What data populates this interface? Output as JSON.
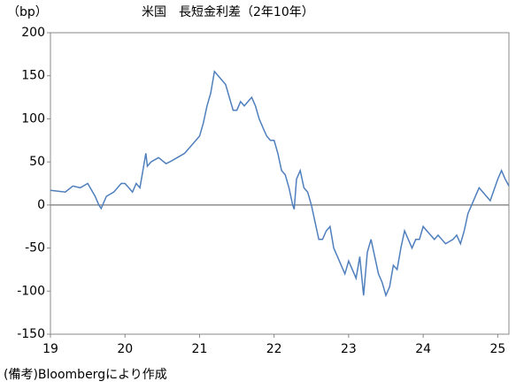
{
  "chart_data": {
    "type": "line",
    "title": "米国　長短金利差（2年10年）",
    "y_label": "（bp）",
    "note": "(備考)Bloombergにより作成",
    "x": [
      19.0,
      19.1,
      19.2,
      19.3,
      19.4,
      19.5,
      19.6,
      19.65,
      19.68,
      19.75,
      19.85,
      19.95,
      20.0,
      20.1,
      20.15,
      20.2,
      20.25,
      20.28,
      20.3,
      20.35,
      20.45,
      20.55,
      20.6,
      20.7,
      20.8,
      20.9,
      21.0,
      21.05,
      21.1,
      21.15,
      21.2,
      21.25,
      21.3,
      21.35,
      21.4,
      21.45,
      21.5,
      21.55,
      21.6,
      21.65,
      21.7,
      21.75,
      21.8,
      21.85,
      21.9,
      21.95,
      22.0,
      22.05,
      22.1,
      22.15,
      22.2,
      22.25,
      22.27,
      22.3,
      22.35,
      22.4,
      22.45,
      22.5,
      22.55,
      22.6,
      22.65,
      22.7,
      22.75,
      22.8,
      22.85,
      22.9,
      22.95,
      23.0,
      23.05,
      23.1,
      23.15,
      23.2,
      23.25,
      23.3,
      23.35,
      23.4,
      23.45,
      23.5,
      23.55,
      23.6,
      23.65,
      23.7,
      23.75,
      23.8,
      23.85,
      23.9,
      23.95,
      24.0,
      24.05,
      24.1,
      24.15,
      24.2,
      24.3,
      24.4,
      24.45,
      24.5,
      24.55,
      24.6,
      24.65,
      24.7,
      24.75,
      24.8,
      24.85,
      24.9,
      25.0,
      25.05,
      25.1,
      25.15
    ],
    "series": [
      {
        "color": "#4f7fbd",
        "values": [
          17,
          16,
          15,
          22,
          20,
          25,
          10,
          0,
          -4,
          10,
          15,
          25,
          25,
          15,
          25,
          20,
          45,
          60,
          45,
          50,
          55,
          48,
          50,
          55,
          60,
          70,
          80,
          95,
          115,
          130,
          155,
          150,
          145,
          140,
          125,
          110,
          110,
          120,
          115,
          120,
          125,
          115,
          100,
          90,
          80,
          75,
          75,
          60,
          40,
          35,
          20,
          0,
          -5,
          30,
          40,
          20,
          15,
          0,
          -20,
          -40,
          -40,
          -30,
          -25,
          -50,
          -60,
          -70,
          -80,
          -65,
          -75,
          -85,
          -60,
          -105,
          -55,
          -40,
          -60,
          -80,
          -90,
          -105,
          -95,
          -70,
          -75,
          -50,
          -30,
          -40,
          -50,
          -40,
          -40,
          -25,
          -30,
          -35,
          -40,
          -35,
          -45,
          -40,
          -35,
          -45,
          -30,
          -10,
          0,
          10,
          20,
          15,
          10,
          5,
          30,
          40,
          30,
          22
        ]
      }
    ],
    "xlim": [
      19,
      25.15
    ],
    "xticks": [
      19,
      20,
      21,
      22,
      23,
      24,
      25
    ],
    "ylim": [
      -150,
      200
    ],
    "yticks": [
      -150,
      -100,
      -50,
      0,
      50,
      100,
      150,
      200
    ]
  }
}
